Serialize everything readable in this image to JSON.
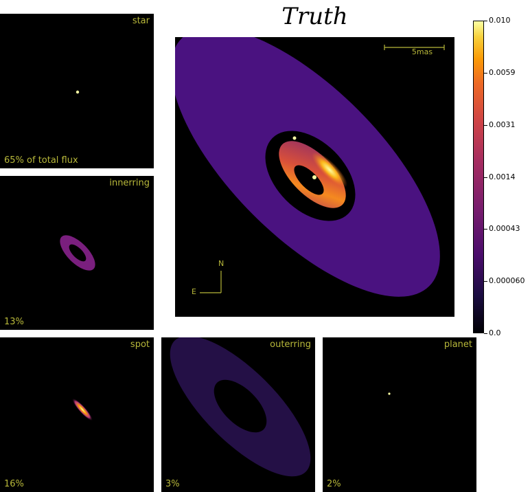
{
  "title": "Truth",
  "panels": {
    "star": {
      "label": "star",
      "flux": "65% of total flux"
    },
    "innerring": {
      "label": "innerring",
      "flux": "13%"
    },
    "spot": {
      "label": "spot",
      "flux": "16%"
    },
    "outerring": {
      "label": "outerring",
      "flux": "3%"
    },
    "planet": {
      "label": "planet",
      "flux": "2%"
    }
  },
  "main": {
    "scalebar_label": "5mas",
    "compass_north": "N",
    "compass_east": "E"
  },
  "colorbar": {
    "colormap": "inferno",
    "ticks": [
      "0.010",
      "0.0059",
      "0.0031",
      "0.0014",
      "0.00043",
      "0.000060",
      "0.0"
    ]
  },
  "colors": {
    "label": "#b8b83a",
    "background": "#000000"
  }
}
